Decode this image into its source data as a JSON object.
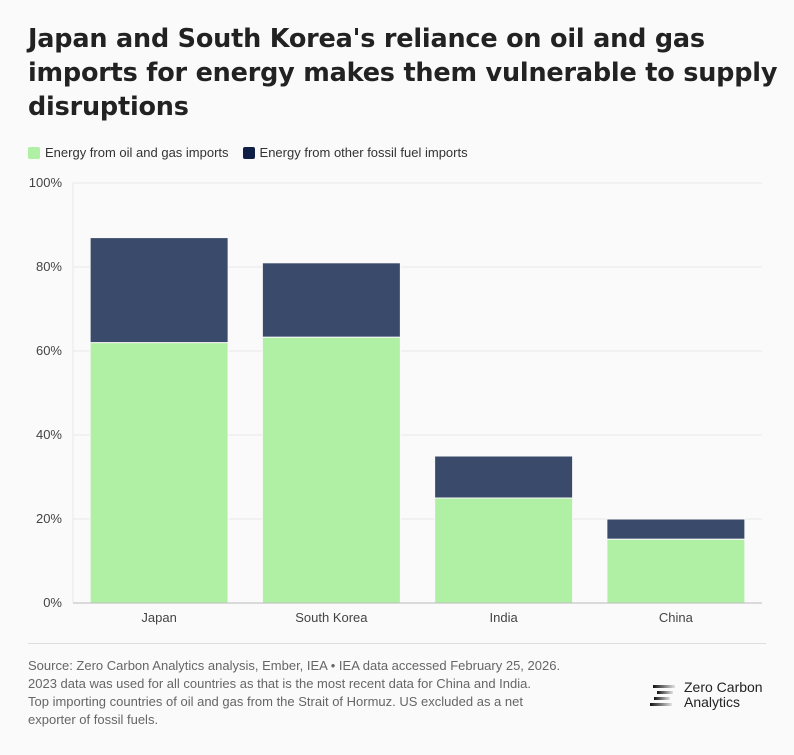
{
  "title": "Japan and South Korea's reliance on oil and gas imports for energy makes them vulnerable to supply disruptions",
  "colors": {
    "oil_gas": "#b0f0a4",
    "other": "#3a4a6b",
    "legend_other": "#0f1f45"
  },
  "chart_data": {
    "type": "bar",
    "stacked": true,
    "title": "Japan and South Korea's reliance on oil and gas imports for energy makes them vulnerable to supply disruptions",
    "categories": [
      "Japan",
      "South Korea",
      "India",
      "China"
    ],
    "series": [
      {
        "name": "Energy from oil and gas imports",
        "values": [
          62,
          63.3,
          25,
          15.2
        ]
      },
      {
        "name": "Energy from other fossil fuel imports",
        "values": [
          25,
          17.7,
          10,
          4.8
        ]
      }
    ],
    "ylim": [
      0,
      100
    ],
    "yticks": [
      "0%",
      "20%",
      "40%",
      "60%",
      "80%",
      "100%"
    ],
    "ytick_values": [
      0,
      20,
      40,
      60,
      80,
      100
    ],
    "grid": true,
    "legend": "top-left"
  },
  "footer": {
    "lines": [
      "Source: Zero Carbon Analytics analysis, Ember, IEA • IEA data accessed February 25, 2026.",
      "2023 data was used for all countries as that is the most recent data for China and India.",
      "Top importing countries of oil and gas from the Strait of Hormuz. US excluded as a net",
      "exporter of fossil fuels."
    ]
  },
  "logo": {
    "line1": "Zero Carbon",
    "line2": "Analytics"
  }
}
